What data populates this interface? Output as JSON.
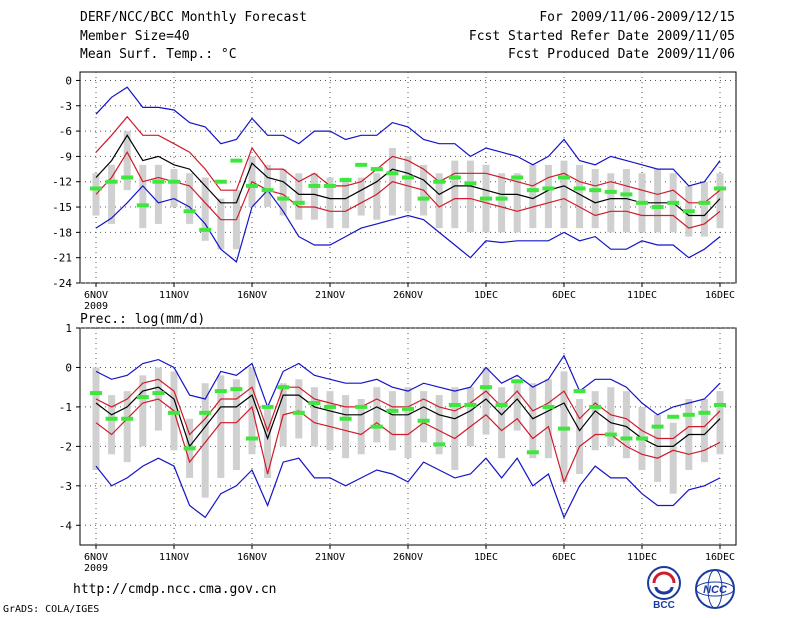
{
  "header": {
    "left": [
      "DERF/NCC/BCC Monthly Forecast",
      "Member Size=40",
      "Mean Surf. Temp.: °C"
    ],
    "right": [
      "For 2009/11/06-2009/12/15",
      "Fcst Started Refer Date 2009/11/05",
      "Fcst Produced Date 2009/11/06"
    ]
  },
  "footer": {
    "url": "http://cmdp.ncc.cma.gov.cn",
    "credit": "GrADS: COLA/IGES"
  },
  "logos": {
    "bcc": "BCC",
    "ncc": "NCC"
  },
  "colors": {
    "median": "#000000",
    "inner": "#d11a2a",
    "outer": "#1414c8",
    "box": "#d0d0d0",
    "mark": "#3ee63e",
    "grid": "#555555"
  },
  "chart_data": [
    {
      "type": "line",
      "title": "Mean Surf. Temp.: °C",
      "ylim": [
        -24,
        1
      ],
      "yticks": [
        0,
        -3,
        -6,
        -9,
        -12,
        -15,
        -18,
        -21,
        -24
      ],
      "xticks": [
        "6NOV",
        "11NOV",
        "16NOV",
        "21NOV",
        "26NOV",
        "1DEC",
        "6DEC",
        "11DEC",
        "16DEC"
      ],
      "xtick_sub": "2009",
      "days": [
        1,
        41
      ],
      "series": [
        {
          "name": "max",
          "values": [
            -17.5,
            -16.3,
            -14.5,
            -12.5,
            -14.5,
            -14,
            -15,
            -17,
            -20,
            -21.5,
            -15,
            -13,
            -15.5,
            -18.5,
            -19.5,
            -19.5,
            -18.5,
            -17.5,
            -17,
            -16.5,
            -16,
            -16.5,
            -18,
            -19.5,
            -21,
            -19,
            -19.2,
            -19,
            -19,
            -19,
            -18,
            -19,
            -18.5,
            -20,
            -20,
            -19,
            -19.5,
            -19.5,
            -21,
            -20,
            -18.5
          ]
        },
        {
          "name": "max_hi",
          "values": [
            -4,
            -2,
            -0.8,
            -3.2,
            -3.2,
            -3.5,
            -5,
            -5.5,
            -7.5,
            -7,
            -4.5,
            -6.5,
            -6.5,
            -7.5,
            -6,
            -6,
            -7,
            -6.5,
            -6.5,
            -5,
            -5.5,
            -7,
            -7.5,
            -7.5,
            -9,
            -8,
            -8.5,
            -9,
            -10,
            -9,
            -7,
            -9.5,
            -10,
            -9,
            -9.5,
            -10,
            -10.5,
            -10.5,
            -12.5,
            -12,
            -9.5
          ]
        },
        {
          "name": "hi",
          "values": [
            -8.5,
            -6.5,
            -4.3,
            -6.5,
            -6.5,
            -7.5,
            -8.5,
            -10.5,
            -13,
            -13,
            -8,
            -10.5,
            -10.5,
            -12,
            -11,
            -12.5,
            -12.5,
            -12,
            -10.5,
            -9,
            -9.5,
            -10.5,
            -12,
            -11,
            -11,
            -11,
            -11.5,
            -12,
            -12.5,
            -11.5,
            -11,
            -12,
            -12.5,
            -12,
            -12.5,
            -13,
            -13.5,
            -13,
            -14.5,
            -14.5,
            -13
          ]
        },
        {
          "name": "median",
          "values": [
            -11.5,
            -9.5,
            -6.5,
            -9.5,
            -9,
            -10,
            -10.5,
            -12.5,
            -14.5,
            -14.5,
            -9.8,
            -11.5,
            -12,
            -13.5,
            -13.5,
            -14,
            -14,
            -13,
            -12,
            -10.5,
            -11,
            -11.8,
            -13.5,
            -12.5,
            -12.5,
            -13,
            -13.5,
            -13.5,
            -14,
            -13,
            -12.5,
            -13.5,
            -14.5,
            -14,
            -14,
            -14.5,
            -14.5,
            -14.5,
            -16,
            -16,
            -14
          ]
        },
        {
          "name": "lo",
          "values": [
            -13.5,
            -11.5,
            -8.5,
            -12,
            -11.5,
            -12,
            -12.5,
            -14.5,
            -16.5,
            -16.5,
            -12,
            -13,
            -13.5,
            -15,
            -15,
            -15.5,
            -15.5,
            -14.5,
            -13.5,
            -12,
            -12.5,
            -13,
            -15,
            -14,
            -14,
            -14.5,
            -15,
            -15.5,
            -15,
            -14.5,
            -14,
            -15,
            -16,
            -15.5,
            -15.5,
            -16,
            -16,
            -16,
            -17.5,
            -17,
            -15.5
          ]
        },
        {
          "name": "box_lo",
          "values": [
            -16,
            -17,
            -13,
            -17.5,
            -17,
            -15,
            -17,
            -19,
            -20,
            -20,
            -15,
            -15,
            -16,
            -16.5,
            -16.5,
            -17.5,
            -17.5,
            -16,
            -16.5,
            -16,
            -15.5,
            -16,
            -17.5,
            -17.5,
            -18,
            -18,
            -18,
            -18,
            -17.5,
            -17.5,
            -17.5,
            -17.5,
            -17.5,
            -18,
            -18,
            -18,
            -18,
            -18,
            -18.5,
            -18.5,
            -17.5
          ]
        },
        {
          "name": "box_hi",
          "values": [
            -11,
            -10,
            -6,
            -10,
            -10,
            -10.5,
            -11,
            -11.5,
            -14,
            -13,
            -9,
            -10,
            -10.5,
            -11,
            -11,
            -11.5,
            -11.5,
            -11.5,
            -11,
            -8,
            -9,
            -10,
            -11,
            -9.5,
            -9.5,
            -10,
            -11,
            -11,
            -10,
            -10,
            -9.5,
            -10,
            -10.5,
            -11,
            -10.5,
            -11,
            -10.5,
            -11,
            -12.5,
            -12,
            -11
          ]
        },
        {
          "name": "obs",
          "values": [
            -12.8,
            -12,
            -11.5,
            -14.8,
            -12,
            -12,
            -15.5,
            -17.7,
            -12,
            -9.5,
            -12.5,
            -13,
            -14,
            -14.5,
            -12.5,
            -12.5,
            -11.8,
            -10,
            -10.5,
            -11,
            -11.5,
            -14,
            -12,
            -11.5,
            -12.2,
            -14,
            -14,
            -11.5,
            -13,
            -12.8,
            -11.5,
            -12.8,
            -13,
            -13.2,
            -13.5,
            -14.5,
            -15,
            -14.5,
            -15.5,
            -14.5,
            -12.8
          ]
        }
      ]
    },
    {
      "type": "line",
      "title": "Prec.: log(mm/d)",
      "ylim": [
        -4.5,
        1
      ],
      "yticks": [
        1,
        0,
        -1,
        -2,
        -3,
        -4
      ],
      "xticks": [
        "6NOV",
        "11NOV",
        "16NOV",
        "21NOV",
        "26NOV",
        "1DEC",
        "6DEC",
        "11DEC",
        "16DEC"
      ],
      "xtick_sub": "2009",
      "days": [
        1,
        41
      ],
      "series": [
        {
          "name": "max",
          "values": [
            -2.5,
            -3,
            -2.8,
            -2.5,
            -2.3,
            -2.5,
            -3.5,
            -3.8,
            -3.2,
            -3,
            -2.6,
            -3.5,
            -2.4,
            -2.3,
            -2.8,
            -2.8,
            -3,
            -2.8,
            -2.6,
            -2.7,
            -2.9,
            -2.4,
            -2.6,
            -2.8,
            -2.7,
            -2.3,
            -2.8,
            -2.3,
            -3,
            -2.7,
            -3.8,
            -3,
            -2.5,
            -2.8,
            -2.8,
            -3.2,
            -3.5,
            -3.5,
            -3.1,
            -3,
            -2.8
          ]
        },
        {
          "name": "max_hi",
          "values": [
            -0.1,
            -0.3,
            -0.2,
            0.1,
            0.2,
            0,
            -0.7,
            -0.8,
            -0.1,
            -0.2,
            0.1,
            -1,
            -0.1,
            0.1,
            -0.2,
            -0.3,
            -0.4,
            -0.4,
            -0.3,
            -0.5,
            -0.6,
            -0.4,
            -0.5,
            -0.6,
            -0.5,
            0,
            -0.4,
            -0.2,
            -0.5,
            -0.3,
            0.3,
            -0.6,
            -0.3,
            -0.3,
            -0.5,
            -0.9,
            -1.2,
            -1,
            -0.9,
            -0.8,
            -0.4
          ]
        },
        {
          "name": "hi",
          "values": [
            -0.8,
            -1,
            -0.8,
            -0.4,
            -0.3,
            -0.6,
            -1.7,
            -1.3,
            -0.8,
            -0.8,
            -0.5,
            -1.6,
            -0.5,
            -0.5,
            -0.8,
            -0.9,
            -1,
            -1,
            -0.8,
            -1,
            -1,
            -0.8,
            -1,
            -1.1,
            -0.9,
            -0.6,
            -1,
            -0.6,
            -1.1,
            -0.9,
            -0.6,
            -1.3,
            -0.9,
            -1.2,
            -1.3,
            -1.6,
            -1.8,
            -1.8,
            -1.5,
            -1.5,
            -1.1
          ]
        },
        {
          "name": "median",
          "values": [
            -0.9,
            -1.2,
            -1,
            -0.6,
            -0.5,
            -0.8,
            -2,
            -1.5,
            -1,
            -1,
            -0.7,
            -1.8,
            -0.7,
            -0.7,
            -1,
            -1.1,
            -1.2,
            -1.2,
            -1,
            -1.2,
            -1.2,
            -1,
            -1.2,
            -1.3,
            -1.1,
            -0.8,
            -1.2,
            -0.8,
            -1.3,
            -1.1,
            -0.9,
            -1.6,
            -1.1,
            -1.4,
            -1.5,
            -1.8,
            -2,
            -2,
            -1.7,
            -1.7,
            -1.3
          ]
        },
        {
          "name": "lo",
          "values": [
            -1.4,
            -1.7,
            -1.3,
            -0.9,
            -0.8,
            -1.1,
            -2.4,
            -1.9,
            -1.4,
            -1.4,
            -1,
            -2.7,
            -1.2,
            -1.1,
            -1.4,
            -1.5,
            -1.6,
            -1.7,
            -1.4,
            -1.7,
            -1.7,
            -1.4,
            -1.6,
            -1.8,
            -1.5,
            -1.2,
            -1.6,
            -1.3,
            -1.8,
            -1.5,
            -2.9,
            -2,
            -1.7,
            -1.7,
            -2,
            -2.2,
            -2.3,
            -2.1,
            -2.2,
            -2.1,
            -1.9
          ]
        },
        {
          "name": "box_lo",
          "values": [
            -2.6,
            -2.2,
            -2.4,
            -2,
            -1.6,
            -2.1,
            -2.8,
            -3.3,
            -2.8,
            -2.6,
            -2.2,
            -2.8,
            -2,
            -1.8,
            -2,
            -2.1,
            -2.3,
            -2.2,
            -1.9,
            -2.1,
            -2.3,
            -1.9,
            -2.2,
            -2.6,
            -2,
            -1.7,
            -2.3,
            -1.6,
            -2.3,
            -2.3,
            -2.9,
            -2.7,
            -2.1,
            -2,
            -2.3,
            -2.6,
            -2.9,
            -3.2,
            -2.6,
            -2.4,
            -2.2
          ]
        },
        {
          "name": "box_hi",
          "values": [
            0,
            -0.7,
            -0.6,
            -0.2,
            0,
            -0.1,
            -1.3,
            -0.4,
            -0.2,
            -0.3,
            0,
            -1,
            -0.4,
            -0.3,
            -0.5,
            -0.6,
            -0.7,
            -0.8,
            -0.5,
            -0.6,
            -0.5,
            -0.6,
            -0.7,
            -0.5,
            -0.5,
            0,
            -0.5,
            -0.3,
            -0.4,
            -0.3,
            -0.1,
            -0.8,
            -0.6,
            -0.5,
            -0.6,
            -1,
            -1.2,
            -1.4,
            -0.8,
            -0.8,
            -0.6
          ]
        },
        {
          "name": "obs",
          "values": [
            -0.65,
            -1.3,
            -1.3,
            -0.75,
            -0.65,
            -1.15,
            -2.05,
            -1.15,
            -0.6,
            -0.55,
            -1.8,
            -1,
            -0.5,
            -1.15,
            -0.9,
            -1,
            -1.3,
            -1,
            -1.5,
            -1.1,
            -1.05,
            -1.35,
            -1.95,
            -0.95,
            -0.95,
            -0.5,
            -0.95,
            -0.35,
            -2.15,
            -1,
            -1.55,
            -0.6,
            -1,
            -1.7,
            -1.8,
            -1.8,
            -1.5,
            -1.25,
            -1.2,
            -1.15,
            -0.95
          ]
        }
      ]
    }
  ]
}
